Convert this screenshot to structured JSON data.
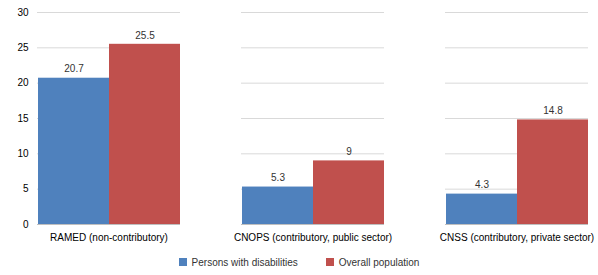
{
  "chart_data": {
    "type": "bar",
    "categories": [
      "RAMED (non-contributory)",
      "CNOPS (contributory, public sector)",
      "CNSS (contributory, private sector)"
    ],
    "series": [
      {
        "name": "Persons with disabilities",
        "color": "#4f81bd",
        "values": [
          20.7,
          5.3,
          4.3
        ]
      },
      {
        "name": "Overall population",
        "color": "#c0504d",
        "values": [
          25.5,
          9,
          14.8
        ]
      }
    ],
    "ylim": [
      0,
      30
    ],
    "yticks": [
      0,
      5,
      10,
      15,
      20,
      25,
      30
    ],
    "grid": true,
    "data_labels": true,
    "legend": "bottom"
  }
}
